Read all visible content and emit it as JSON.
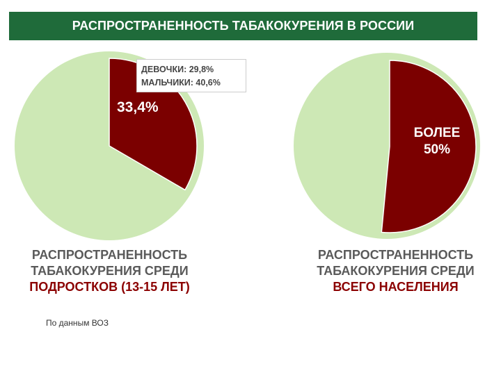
{
  "title": "РАСПРОСТРАНЕННОСТЬ ТАБАКОКУРЕНИЯ В РОССИИ",
  "colors": {
    "header": "#1f6b3a",
    "slice": "#7b0000",
    "rest": "#cde8b5"
  },
  "chart_data": [
    {
      "type": "pie",
      "values": [
        33.4,
        66.6
      ],
      "slice_label": "33,4%",
      "callout": [
        "ДЕВОЧКИ: 29,8%",
        "МАЛЬЧИКИ: 40,6%"
      ],
      "caption": [
        "РАСПРОСТРАНЕННОСТЬ",
        "ТАБАКОКУРЕНИЯ СРЕДИ",
        "ПОДРОСТКОВ (13-15 ЛЕТ)"
      ]
    },
    {
      "type": "pie",
      "values": [
        51.5,
        48.5
      ],
      "slice_label_top": "БОЛЕЕ",
      "slice_label_value": "50%",
      "caption": [
        "РАСПРОСТРАНЕННОСТЬ",
        "ТАБАКОКУРЕНИЯ СРЕДИ",
        "ВСЕГО НАСЕЛЕНИЯ"
      ]
    }
  ],
  "source": "По данным ВОЗ"
}
